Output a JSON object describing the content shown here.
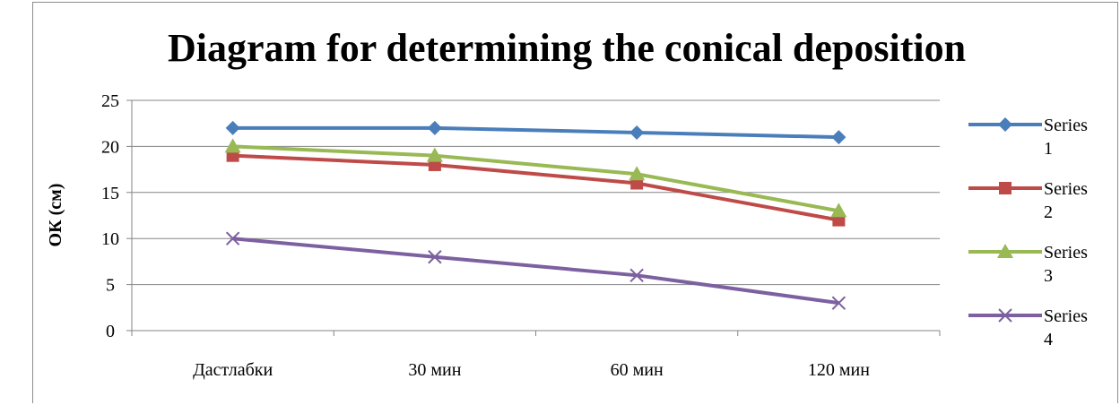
{
  "chart_data": {
    "type": "line",
    "title": "Diagram for determining the conical deposition",
    "xlabel": "",
    "ylabel": "ОК (см)",
    "categories": [
      "Дастлабки",
      "30 мин",
      "60 мин",
      "120 мин"
    ],
    "ylim": [
      0,
      25
    ],
    "yticks": [
      0,
      5,
      10,
      15,
      20,
      25
    ],
    "grid": true,
    "legend": "right",
    "series": [
      {
        "name": "Series 1",
        "legend_lines": [
          "Series",
          "1"
        ],
        "color": "#4a7ebb",
        "marker": "diamond",
        "values": [
          22,
          22,
          21.5,
          21
        ]
      },
      {
        "name": "Series 2",
        "legend_lines": [
          "Series",
          "2"
        ],
        "color": "#be4b48",
        "marker": "square",
        "values": [
          19,
          18,
          16,
          12
        ]
      },
      {
        "name": "Series 3",
        "legend_lines": [
          "Series",
          "3"
        ],
        "color": "#98b954",
        "marker": "triangle",
        "values": [
          20,
          19,
          17,
          13
        ]
      },
      {
        "name": "Series 4",
        "legend_lines": [
          "Series",
          "4"
        ],
        "color": "#7d60a0",
        "marker": "x",
        "values": [
          10,
          8,
          6,
          3
        ]
      }
    ]
  }
}
